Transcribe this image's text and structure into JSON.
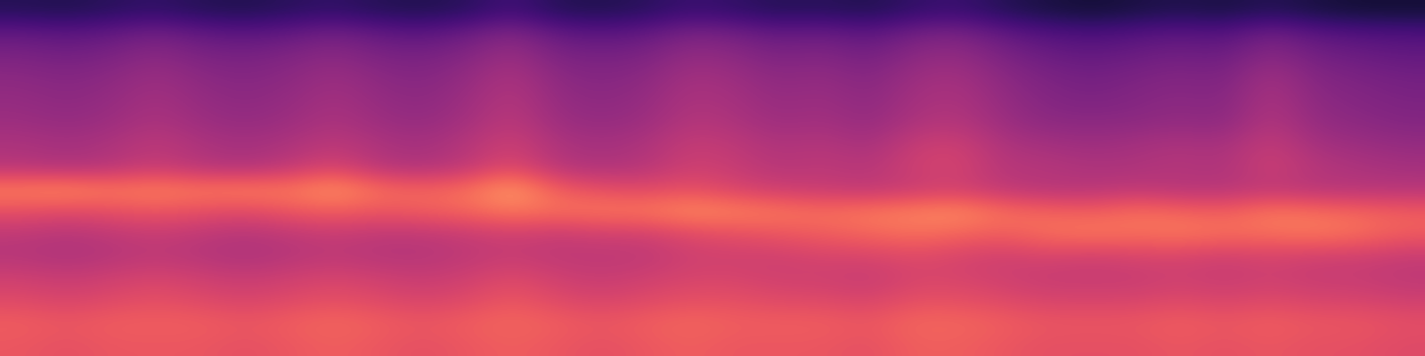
{
  "chart_data": {
    "type": "heatmap",
    "color": "magma",
    "color_range": [
      0,
      100
    ],
    "tick_labels": false,
    "cells": [
      [
        15,
        14,
        16,
        18,
        15,
        14,
        16,
        18,
        15,
        14,
        16,
        22,
        15,
        14,
        16,
        20,
        18,
        15,
        16,
        14,
        18,
        20,
        15,
        12,
        10,
        12,
        14,
        12,
        15,
        12,
        10,
        10
      ],
      [
        30,
        28,
        30,
        34,
        30,
        28,
        30,
        34,
        30,
        28,
        32,
        38,
        30,
        28,
        30,
        36,
        34,
        30,
        32,
        28,
        34,
        36,
        30,
        26,
        24,
        26,
        28,
        26,
        34,
        28,
        26,
        25
      ],
      [
        36,
        34,
        36,
        40,
        36,
        35,
        37,
        40,
        36,
        35,
        38,
        44,
        36,
        35,
        36,
        42,
        40,
        36,
        38,
        34,
        40,
        42,
        36,
        32,
        30,
        32,
        34,
        32,
        40,
        34,
        32,
        30
      ],
      [
        40,
        38,
        40,
        44,
        40,
        38,
        40,
        44,
        40,
        38,
        42,
        48,
        40,
        38,
        40,
        46,
        44,
        40,
        42,
        38,
        44,
        46,
        40,
        36,
        34,
        36,
        38,
        36,
        46,
        38,
        36,
        34
      ],
      [
        42,
        40,
        42,
        46,
        42,
        40,
        42,
        46,
        42,
        40,
        44,
        50,
        42,
        40,
        42,
        48,
        46,
        42,
        44,
        40,
        46,
        48,
        42,
        38,
        36,
        38,
        40,
        38,
        48,
        40,
        38,
        36
      ],
      [
        44,
        42,
        44,
        48,
        44,
        42,
        44,
        48,
        44,
        42,
        46,
        52,
        44,
        42,
        44,
        50,
        48,
        44,
        46,
        42,
        48,
        50,
        44,
        40,
        40,
        40,
        42,
        40,
        50,
        42,
        40,
        38
      ],
      [
        48,
        46,
        48,
        52,
        48,
        46,
        48,
        52,
        48,
        46,
        50,
        56,
        48,
        46,
        48,
        54,
        52,
        48,
        50,
        46,
        54,
        56,
        48,
        46,
        44,
        46,
        48,
        46,
        54,
        46,
        44,
        42
      ],
      [
        50,
        48,
        50,
        54,
        50,
        48,
        52,
        58,
        50,
        48,
        52,
        60,
        50,
        48,
        50,
        56,
        54,
        50,
        52,
        50,
        56,
        58,
        50,
        50,
        48,
        48,
        50,
        48,
        56,
        50,
        48,
        46
      ],
      [
        74,
        76,
        72,
        74,
        72,
        74,
        72,
        78,
        70,
        68,
        70,
        80,
        66,
        62,
        60,
        62,
        58,
        55,
        54,
        52,
        54,
        56,
        52,
        50,
        50,
        52,
        50,
        50,
        52,
        50,
        50,
        50
      ],
      [
        62,
        60,
        62,
        64,
        62,
        60,
        64,
        66,
        64,
        66,
        68,
        72,
        70,
        72,
        72,
        76,
        74,
        72,
        70,
        72,
        74,
        76,
        70,
        68,
        66,
        70,
        68,
        66,
        72,
        70,
        68,
        66
      ],
      [
        52,
        50,
        52,
        54,
        52,
        50,
        52,
        54,
        52,
        52,
        54,
        56,
        54,
        56,
        56,
        60,
        62,
        64,
        66,
        68,
        70,
        68,
        66,
        70,
        72,
        70,
        72,
        70,
        70,
        72,
        70,
        66
      ],
      [
        50,
        48,
        50,
        52,
        50,
        48,
        50,
        52,
        50,
        50,
        52,
        54,
        52,
        52,
        52,
        56,
        56,
        56,
        58,
        58,
        60,
        58,
        56,
        58,
        56,
        58,
        58,
        56,
        58,
        56,
        56,
        54
      ],
      [
        56,
        54,
        56,
        58,
        56,
        54,
        56,
        58,
        56,
        54,
        56,
        60,
        56,
        54,
        56,
        58,
        58,
        56,
        56,
        54,
        58,
        58,
        56,
        54,
        54,
        54,
        56,
        54,
        56,
        54,
        54,
        52
      ],
      [
        60,
        58,
        60,
        62,
        60,
        58,
        60,
        62,
        60,
        58,
        60,
        64,
        60,
        58,
        60,
        62,
        62,
        60,
        60,
        58,
        62,
        62,
        60,
        58,
        58,
        58,
        60,
        58,
        60,
        58,
        58,
        56
      ],
      [
        66,
        64,
        66,
        66,
        66,
        64,
        66,
        68,
        66,
        64,
        66,
        68,
        66,
        64,
        66,
        68,
        66,
        66,
        66,
        64,
        68,
        68,
        66,
        64,
        64,
        64,
        66,
        64,
        66,
        64,
        64,
        62
      ],
      [
        64,
        62,
        64,
        64,
        64,
        62,
        64,
        66,
        64,
        62,
        64,
        66,
        64,
        62,
        64,
        66,
        64,
        64,
        64,
        62,
        66,
        66,
        64,
        62,
        62,
        62,
        64,
        62,
        64,
        62,
        62,
        60
      ]
    ]
  }
}
